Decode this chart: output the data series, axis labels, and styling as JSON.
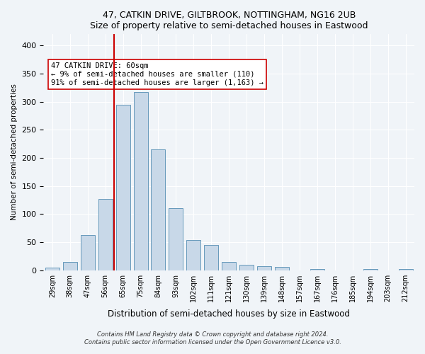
{
  "title1": "47, CATKIN DRIVE, GILTBROOK, NOTTINGHAM, NG16 2UB",
  "title2": "Size of property relative to semi-detached houses in Eastwood",
  "xlabel": "Distribution of semi-detached houses by size in Eastwood",
  "ylabel": "Number of semi-detached properties",
  "categories": [
    "29sqm",
    "38sqm",
    "47sqm",
    "56sqm",
    "65sqm",
    "75sqm",
    "84sqm",
    "93sqm",
    "102sqm",
    "111sqm",
    "121sqm",
    "130sqm",
    "139sqm",
    "148sqm",
    "157sqm",
    "167sqm",
    "176sqm",
    "185sqm",
    "194sqm",
    "203sqm",
    "212sqm"
  ],
  "values": [
    5,
    15,
    62,
    127,
    294,
    317,
    215,
    110,
    54,
    45,
    15,
    10,
    7,
    6,
    0,
    2,
    0,
    0,
    2,
    0,
    2
  ],
  "bar_color": "#c8d8e8",
  "bar_edge_color": "#6699bb",
  "property_sqm": 60,
  "property_bin_index": 3,
  "vline_color": "#cc0000",
  "annotation_text": "47 CATKIN DRIVE: 60sqm\n← 9% of semi-detached houses are smaller (110)\n91% of semi-detached houses are larger (1,163) →",
  "annotation_box_color": "#ffffff",
  "annotation_box_edge": "#cc0000",
  "ylim": [
    0,
    420
  ],
  "footnote1": "Contains HM Land Registry data © Crown copyright and database right 2024.",
  "footnote2": "Contains public sector information licensed under the Open Government Licence v3.0.",
  "background_color": "#f0f4f8",
  "plot_bg_color": "#f0f4f8"
}
